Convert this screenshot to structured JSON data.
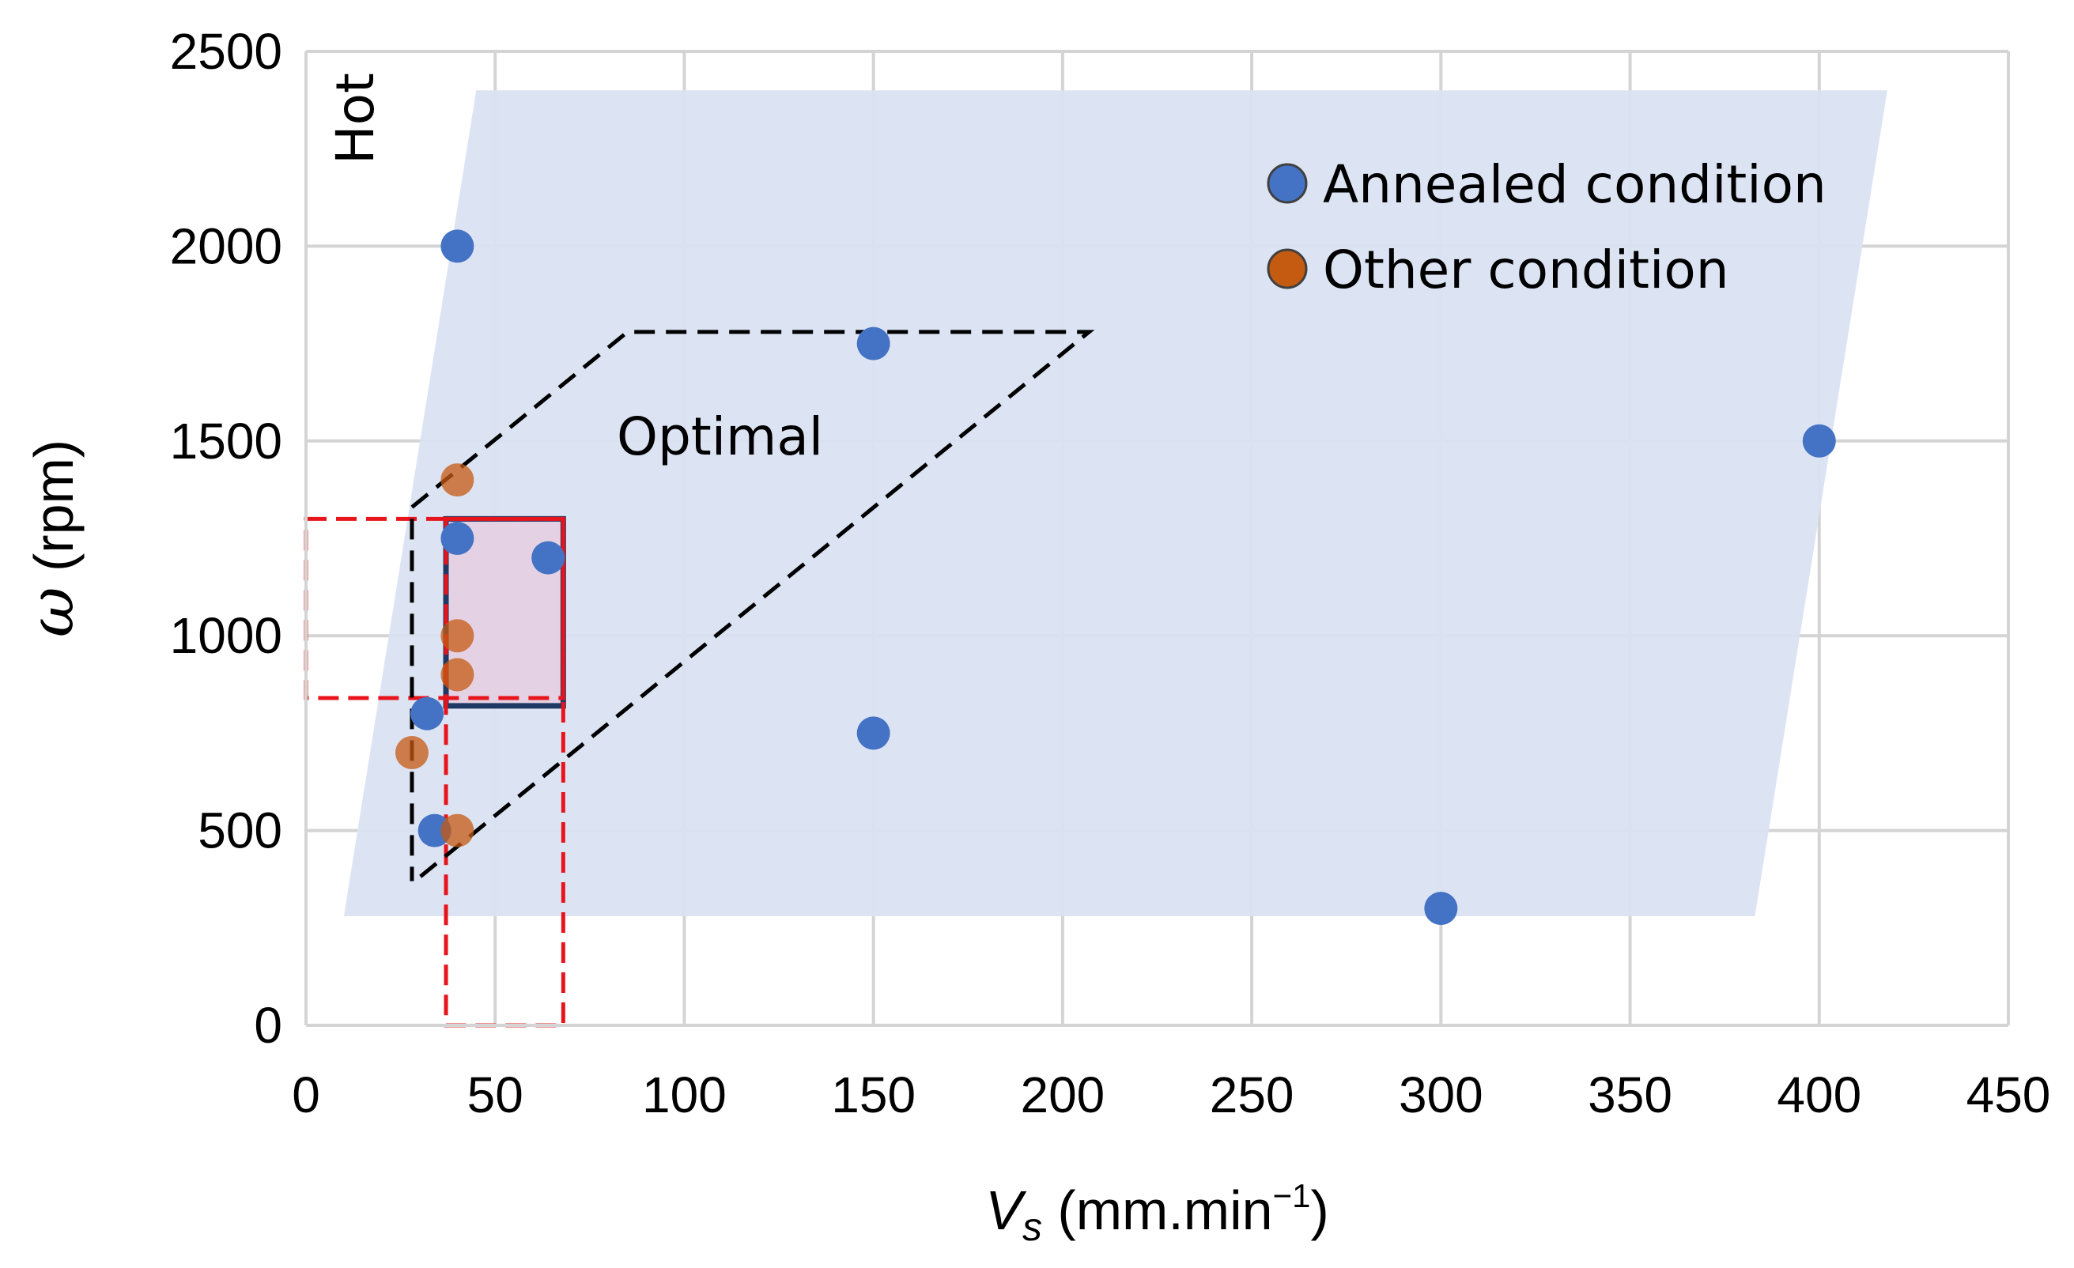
{
  "chart_data": {
    "type": "scatter",
    "title": "",
    "xlabel_symbol": "V",
    "xlabel_subscript": "s",
    "xlabel_units": " (mm.min",
    "xlabel_superscript": "−1",
    "xlabel_close": ")",
    "ylabel_symbol": "ω",
    "ylabel_units": " (rpm)",
    "xlim": [
      0,
      450
    ],
    "ylim": [
      0,
      2500
    ],
    "x_ticks": [
      0,
      50,
      100,
      150,
      200,
      250,
      300,
      350,
      400,
      450
    ],
    "y_ticks": [
      0,
      500,
      1000,
      1500,
      2000,
      2500
    ],
    "grid": true,
    "legend_position": "top-right",
    "series": [
      {
        "name": "Annealed condition",
        "color": "#4472c4",
        "points": [
          {
            "x": 40,
            "y": 2000
          },
          {
            "x": 150,
            "y": 1750
          },
          {
            "x": 400,
            "y": 1500
          },
          {
            "x": 40,
            "y": 1250
          },
          {
            "x": 64,
            "y": 1200
          },
          {
            "x": 32,
            "y": 800
          },
          {
            "x": 150,
            "y": 750
          },
          {
            "x": 34,
            "y": 500
          },
          {
            "x": 300,
            "y": 300
          }
        ]
      },
      {
        "name": "Other condition",
        "color": "#c55a11",
        "points": [
          {
            "x": 40,
            "y": 1400
          },
          {
            "x": 40,
            "y": 1000
          },
          {
            "x": 40,
            "y": 900
          },
          {
            "x": 28,
            "y": 700
          },
          {
            "x": 40,
            "y": 500
          }
        ]
      }
    ],
    "regions": {
      "hot_label": "Hot",
      "optimal_label": "Optimal",
      "hot_region_color": "#dae3f3",
      "selected_box_color": "#1f3864",
      "selected_box_fill": "#e4d2e4",
      "dashed_red_color": "#e8141c",
      "dashed_black_color": "#000000",
      "hot_polygon": [
        [
          10,
          280
        ],
        [
          45,
          2400
        ],
        [
          418,
          2400
        ],
        [
          383,
          280
        ]
      ],
      "optimal_polygon": [
        [
          28,
          1330
        ],
        [
          85,
          1780
        ],
        [
          207,
          1780
        ],
        [
          30,
          380
        ]
      ],
      "optimal_vertical": [
        [
          28,
          1300
        ],
        [
          28,
          370
        ]
      ],
      "selected_box": {
        "x0": 37,
        "x1": 68,
        "y0": 820,
        "y1": 1300
      },
      "red_box_left": {
        "x0": 0,
        "x1": 68,
        "y0": 840,
        "y1": 1300
      },
      "red_box_bottom": {
        "x0": 37,
        "x1": 68,
        "y0": 0,
        "y1": 1300
      }
    }
  }
}
